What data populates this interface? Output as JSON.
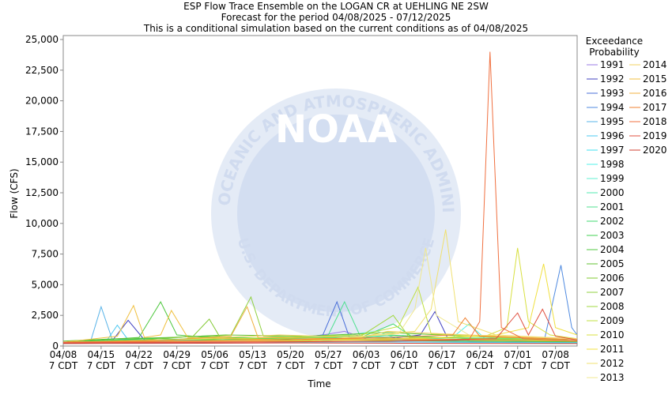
{
  "watermark": {
    "logo": "NOAA",
    "ring_top": "NATIONAL OCEANIC AND ATMOSPHERIC ADMINISTRATION",
    "ring_bottom": "U.S. DEPARTMENT OF COMMERCE"
  },
  "chart_data": {
    "type": "line",
    "title": "ESP Flow Trace Ensemble on the LOGAN CR at UEHLING NE 2SW",
    "subtitle": "Forecast for the period 04/08/2025 - 07/12/2025",
    "note": "This is a conditional simulation based on the current conditions as of 04/08/2025",
    "y_label": "Flow (CFS)",
    "x_label": "Time",
    "legend_title": "Exceedance Probability",
    "xlim": [
      0,
      95
    ],
    "ylim": [
      0,
      25000
    ],
    "grid": false,
    "xticks": [
      {
        "value": 0,
        "label": "04/08\n7 CDT"
      },
      {
        "value": 7,
        "label": "04/15\n7 CDT"
      },
      {
        "value": 14,
        "label": "04/22\n7 CDT"
      },
      {
        "value": 21,
        "label": "04/29\n7 CDT"
      },
      {
        "value": 28,
        "label": "05/06\n7 CDT"
      },
      {
        "value": 35,
        "label": "05/13\n7 CDT"
      },
      {
        "value": 42,
        "label": "05/20\n7 CDT"
      },
      {
        "value": 49,
        "label": "05/27\n7 CDT"
      },
      {
        "value": 56,
        "label": "06/03\n7 CDT"
      },
      {
        "value": 63,
        "label": "06/10\n7 CDT"
      },
      {
        "value": 70,
        "label": "06/17\n7 CDT"
      },
      {
        "value": 77,
        "label": "06/24\n7 CDT"
      },
      {
        "value": 84,
        "label": "07/01\n7 CDT"
      },
      {
        "value": 91,
        "label": "07/08\n7 CDT"
      }
    ],
    "yticks": [
      0,
      {
        "value": 2500,
        "label": "2,500"
      },
      {
        "value": 5000,
        "label": "5,000"
      },
      {
        "value": 7500,
        "label": "7,500"
      },
      {
        "value": 10000,
        "label": "10,000"
      },
      {
        "value": 12500,
        "label": "12,500"
      },
      {
        "value": 15000,
        "label": "15,000"
      },
      {
        "value": 17500,
        "label": "17,500"
      },
      {
        "value": 20000,
        "label": "20,000"
      },
      {
        "value": 22500,
        "label": "22,500"
      },
      {
        "value": 25000,
        "label": "25,000"
      }
    ],
    "series": [
      {
        "name": "1991",
        "color": "#9a7be6",
        "x": [
          0,
          10,
          20,
          30,
          40,
          48,
          52,
          56,
          70,
          80,
          95
        ],
        "values": [
          250,
          300,
          400,
          350,
          500,
          900,
          1200,
          600,
          500,
          400,
          300
        ]
      },
      {
        "name": "1992",
        "color": "#4040c0",
        "x": [
          0,
          9,
          12,
          15,
          30,
          60,
          66,
          68.7,
          71,
          80,
          95
        ],
        "values": [
          300,
          400,
          2100,
          500,
          400,
          600,
          900,
          2800,
          700,
          500,
          400
        ]
      },
      {
        "name": "1993",
        "color": "#4a6fd8",
        "x": [
          0,
          20,
          40,
          48,
          50.6,
          53,
          65,
          80,
          95
        ],
        "values": [
          300,
          350,
          500,
          900,
          3600,
          600,
          500,
          400,
          350
        ]
      },
      {
        "name": "1994",
        "color": "#4f8ae0",
        "x": [
          0,
          30,
          60,
          80,
          89,
          92,
          94,
          95
        ],
        "values": [
          200,
          300,
          400,
          500,
          600,
          6600,
          1500,
          900
        ]
      },
      {
        "name": "1995",
        "color": "#5ab4e8",
        "x": [
          0,
          5,
          7,
          9,
          20,
          40,
          60,
          80,
          95
        ],
        "values": [
          200,
          300,
          3200,
          600,
          400,
          300,
          350,
          300,
          250
        ]
      },
      {
        "name": "1996",
        "color": "#4cc8f0",
        "x": [
          0,
          8,
          10,
          12,
          30,
          50,
          70,
          95
        ],
        "values": [
          250,
          400,
          1700,
          500,
          400,
          350,
          300,
          250
        ]
      },
      {
        "name": "1997",
        "color": "#40e0f0",
        "x": [
          0,
          10,
          25,
          45,
          56,
          60,
          75,
          95
        ],
        "values": [
          200,
          400,
          500,
          300,
          700,
          900,
          400,
          300
        ]
      },
      {
        "name": "1998",
        "color": "#50f0e8",
        "x": [
          0,
          20,
          40,
          60,
          72,
          75,
          78,
          90,
          95
        ],
        "values": [
          300,
          400,
          600,
          500,
          700,
          1800,
          600,
          500,
          400
        ]
      },
      {
        "name": "1999",
        "color": "#60f0d0",
        "x": [
          0,
          15,
          30,
          45,
          58,
          62,
          80,
          95
        ],
        "values": [
          200,
          300,
          400,
          500,
          1200,
          600,
          500,
          400
        ]
      },
      {
        "name": "2000",
        "color": "#50e8b0",
        "x": [
          0,
          20,
          35,
          50,
          70,
          85,
          95
        ],
        "values": [
          250,
          350,
          600,
          800,
          700,
          600,
          500
        ]
      },
      {
        "name": "2001",
        "color": "#50e090",
        "x": [
          0,
          20,
          40,
          49,
          52,
          55,
          70,
          95
        ],
        "values": [
          300,
          400,
          500,
          900,
          3600,
          700,
          500,
          400
        ]
      },
      {
        "name": "2002",
        "color": "#40d870",
        "x": [
          0,
          10,
          25,
          40,
          55,
          61,
          65,
          80,
          95
        ],
        "values": [
          300,
          500,
          800,
          600,
          700,
          1800,
          600,
          500,
          400
        ]
      },
      {
        "name": "2003",
        "color": "#40d050",
        "x": [
          0,
          15,
          30,
          45,
          60,
          75,
          95
        ],
        "values": [
          250,
          600,
          500,
          400,
          900,
          600,
          400
        ]
      },
      {
        "name": "2004",
        "color": "#50c840",
        "x": [
          0,
          14,
          18,
          21,
          30,
          50,
          70,
          95
        ],
        "values": [
          300,
          700,
          3600,
          900,
          600,
          500,
          400,
          350
        ]
      },
      {
        "name": "2005",
        "color": "#60c030",
        "x": [
          0,
          10,
          20,
          30,
          45,
          60,
          80,
          95
        ],
        "values": [
          400,
          600,
          700,
          900,
          800,
          1100,
          700,
          500
        ]
      },
      {
        "name": "2006",
        "color": "#80c830",
        "x": [
          0,
          15,
          24,
          27,
          29,
          40,
          60,
          95
        ],
        "values": [
          300,
          500,
          800,
          2200,
          700,
          500,
          600,
          400
        ]
      },
      {
        "name": "2007",
        "color": "#90d040",
        "x": [
          0,
          20,
          31,
          34.7,
          37,
          50,
          70,
          95
        ],
        "values": [
          300,
          500,
          900,
          4000,
          800,
          600,
          500,
          400
        ]
      },
      {
        "name": "2008",
        "color": "#a0d840",
        "x": [
          0,
          20,
          40,
          55,
          61,
          64,
          80,
          95
        ],
        "values": [
          250,
          400,
          600,
          800,
          2500,
          700,
          600,
          400
        ]
      },
      {
        "name": "2009",
        "color": "#c0e040",
        "x": [
          0,
          20,
          40,
          55,
          62,
          65.6,
          68,
          80,
          95
        ],
        "values": [
          300,
          500,
          700,
          900,
          1600,
          4800,
          1000,
          700,
          500
        ]
      },
      {
        "name": "2010",
        "color": "#d8e040",
        "x": [
          0,
          30,
          60,
          78,
          82,
          84,
          86,
          90,
          95
        ],
        "values": [
          300,
          400,
          600,
          800,
          1500,
          8000,
          2000,
          900,
          600
        ]
      },
      {
        "name": "2011",
        "color": "#f0e040",
        "x": [
          0,
          30,
          60,
          80,
          86,
          88.8,
          91,
          95
        ],
        "values": [
          300,
          400,
          500,
          900,
          1500,
          6700,
          1500,
          900
        ]
      },
      {
        "name": "2012",
        "color": "#f0e070",
        "x": [
          0,
          30,
          50,
          65,
          68,
          70.7,
          73,
          80,
          95
        ],
        "values": [
          300,
          400,
          600,
          1200,
          3000,
          9500,
          2000,
          900,
          600
        ]
      },
      {
        "name": "2013",
        "color": "#f0e890",
        "x": [
          0,
          30,
          50,
          62,
          65,
          67,
          69,
          75,
          95
        ],
        "values": [
          300,
          400,
          600,
          1000,
          3000,
          8000,
          2500,
          900,
          600
        ]
      },
      {
        "name": "2014",
        "color": "#f0d060",
        "x": [
          0,
          20,
          40,
          55,
          60,
          70,
          80,
          95
        ],
        "values": [
          300,
          500,
          900,
          700,
          1200,
          1000,
          800,
          600
        ]
      },
      {
        "name": "2015",
        "color": "#f0c040",
        "x": [
          0,
          10,
          13,
          15,
          18,
          20,
          23,
          40,
          60,
          80,
          95
        ],
        "values": [
          300,
          800,
          3300,
          700,
          900,
          2900,
          700,
          500,
          600,
          500,
          400
        ]
      },
      {
        "name": "2016",
        "color": "#f0b040",
        "x": [
          0,
          20,
          31,
          34,
          36,
          50,
          70,
          95
        ],
        "values": [
          300,
          500,
          800,
          3200,
          700,
          600,
          500,
          400
        ]
      },
      {
        "name": "2017",
        "color": "#f08030",
        "x": [
          0,
          20,
          40,
          60,
          72,
          74.3,
          77,
          90,
          95
        ],
        "values": [
          300,
          400,
          500,
          700,
          900,
          2300,
          800,
          600,
          500
        ]
      },
      {
        "name": "2018",
        "color": "#f07040",
        "x": [
          0,
          30,
          60,
          75,
          77,
          78.9,
          81,
          85,
          95
        ],
        "values": [
          300,
          350,
          400,
          500,
          2000,
          24000,
          1500,
          600,
          400
        ]
      },
      {
        "name": "2019",
        "color": "#e05040",
        "x": [
          0,
          30,
          60,
          80,
          84,
          86,
          88.6,
          91,
          95
        ],
        "values": [
          250,
          300,
          400,
          600,
          2700,
          900,
          3000,
          800,
          500
        ]
      },
      {
        "name": "2020",
        "color": "#d04030",
        "x": [
          0,
          20,
          40,
          60,
          80,
          95
        ],
        "values": [
          200,
          220,
          250,
          230,
          210,
          200
        ]
      }
    ]
  }
}
